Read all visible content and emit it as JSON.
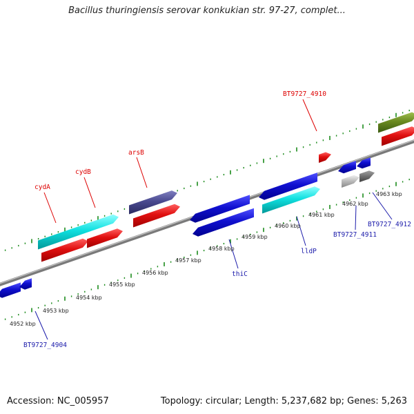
{
  "title": "Bacillus thuringiensis serovar konkukian str. 97-27, complet...",
  "footer": {
    "accession": "Accession: NC_005957",
    "topology": "Topology: circular; Length: 5,237,682 bp; Genes: 5,263"
  },
  "scale_labels": [
    "4952 kbp",
    "4953 kbp",
    "4954 kbp",
    "4955 kbp",
    "4956 kbp",
    "4957 kbp",
    "4958 kbp",
    "4959 kbp",
    "4960 kbp",
    "4961 kbp",
    "4962 kbp",
    "4963 kbp"
  ],
  "gene_labels": [
    {
      "text": "cydA",
      "color": "#dd0000"
    },
    {
      "text": "cydB",
      "color": "#dd0000"
    },
    {
      "text": "arsB",
      "color": "#dd0000"
    },
    {
      "text": "BT9727_4910",
      "color": "#dd0000"
    },
    {
      "text": "BT9727_4904",
      "color": "#1a1aaa"
    },
    {
      "text": "thiC",
      "color": "#1a1aaa"
    },
    {
      "text": "lldP",
      "color": "#1a1aaa"
    },
    {
      "text": "BT9727_4911",
      "color": "#1a1aaa"
    },
    {
      "text": "BT9727_4912",
      "color": "#1a1aaa"
    }
  ],
  "colors": {
    "backbone": "#8a8a8a",
    "tick": "#1a8a1a",
    "red": "#e01010",
    "blue": "#1010d0",
    "cyan": "#10e0e0",
    "purple": "#4a4a90",
    "olive": "#6a8a20",
    "gray": "#b8b8b8",
    "darkgray": "#707070"
  }
}
